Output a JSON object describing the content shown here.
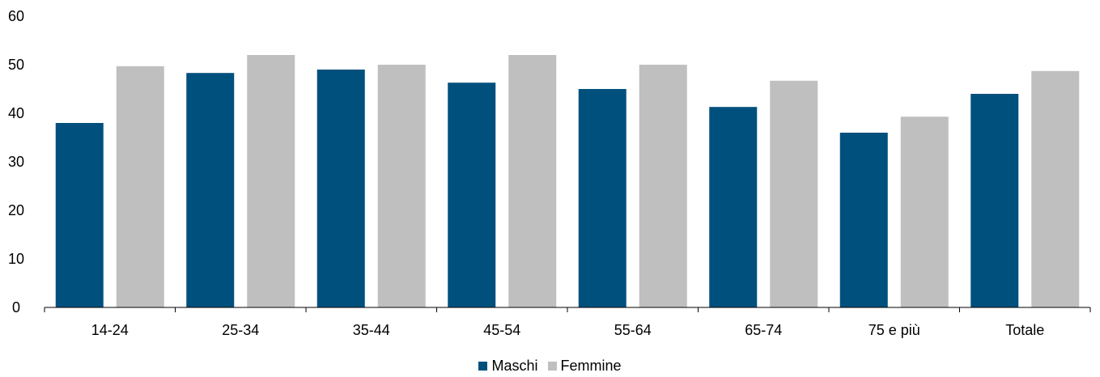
{
  "chart_data": {
    "type": "bar",
    "categories": [
      "14-24",
      "25-34",
      "35-44",
      "45-54",
      "55-64",
      "65-74",
      "75 e più",
      "Totale"
    ],
    "series": [
      {
        "name": "Maschi",
        "color": "#00507D",
        "values": [
          38.0,
          48.3,
          49.0,
          46.3,
          45.0,
          41.3,
          36.0,
          44.0
        ]
      },
      {
        "name": "Femmine",
        "color": "#BFBFBF",
        "values": [
          49.7,
          52.0,
          50.0,
          52.0,
          50.0,
          46.7,
          39.3,
          48.7
        ]
      }
    ],
    "yticks": [
      0,
      10,
      20,
      30,
      40,
      50,
      60
    ],
    "ylim": [
      0,
      60
    ],
    "legend_position": "bottom-center",
    "grid": false
  }
}
